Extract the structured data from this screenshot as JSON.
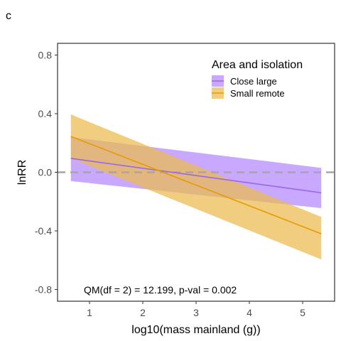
{
  "chart_data": {
    "type": "line",
    "panel_label": "c",
    "xlabel": "log10(mass mainland (g))",
    "ylabel": "lnRR",
    "xlim": [
      0.4,
      5.6
    ],
    "ylim": [
      -0.88,
      0.88
    ],
    "x_ticks": [
      1,
      2,
      3,
      4,
      5
    ],
    "x_tick_labels": [
      "1",
      "2",
      "3",
      "4",
      "5"
    ],
    "y_ticks": [
      -0.8,
      -0.4,
      0.0,
      0.4,
      0.8
    ],
    "y_tick_labels": [
      "-0.8",
      "-0.4",
      "0.0",
      "0.4",
      "0.8"
    ],
    "grid": false,
    "reference_line": {
      "y": 0,
      "style": "dashed",
      "color": "#a6a6a6"
    },
    "legend": {
      "title": "Area and isolation",
      "placement": "top-right"
    },
    "series": [
      {
        "name": "Close large",
        "color": "#9966e6",
        "fill": "#b388ff",
        "x": [
          0.65,
          5.35
        ],
        "y": [
          0.095,
          -0.14
        ],
        "ci_lower": [
          -0.06,
          -0.245
        ],
        "ci_upper": [
          0.24,
          0.03
        ]
      },
      {
        "name": "Small remote",
        "color": "#e69b00",
        "fill": "#ebbb4d",
        "x": [
          0.65,
          5.35
        ],
        "y": [
          0.245,
          -0.42
        ],
        "ci_lower": [
          0.095,
          -0.595
        ],
        "ci_upper": [
          0.395,
          -0.305
        ]
      }
    ],
    "annotation": "QM(df = 2) = 12.199, p-val = 0.002"
  }
}
